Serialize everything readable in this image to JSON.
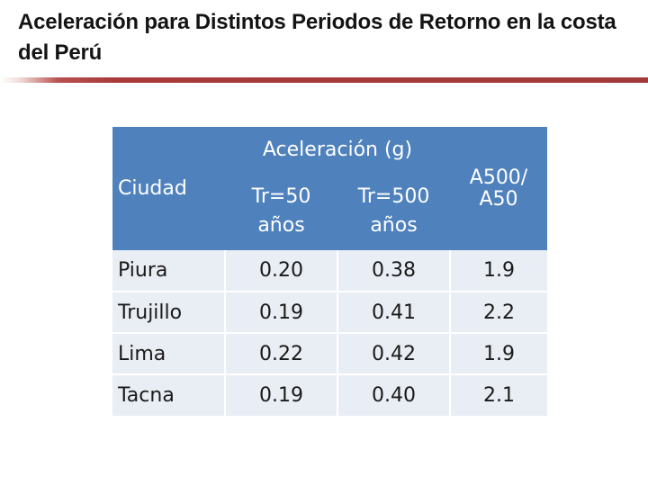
{
  "slide": {
    "title": "Aceleración para Distintos Periodos de Retorno en la costa del Perú"
  },
  "table": {
    "header_city": "Ciudad",
    "header_group": "Aceleración (g)",
    "header_tr50_line1": "Tr=50",
    "header_tr50_line2": "años",
    "header_tr500_line1": "Tr=500",
    "header_tr500_line2": "años",
    "header_ratio_line1": "A500/",
    "header_ratio_line2": "A50",
    "rows": [
      {
        "city": "Piura",
        "tr50": "0.20",
        "tr500": "0.38",
        "ratio": "1.9"
      },
      {
        "city": "Trujillo",
        "tr50": "0.19",
        "tr500": "0.41",
        "ratio": "2.2"
      },
      {
        "city": "Lima",
        "tr50": "0.22",
        "tr500": "0.42",
        "ratio": "1.9"
      },
      {
        "city": "Tacna",
        "tr50": "0.19",
        "tr500": "0.40",
        "ratio": "2.1"
      }
    ]
  }
}
